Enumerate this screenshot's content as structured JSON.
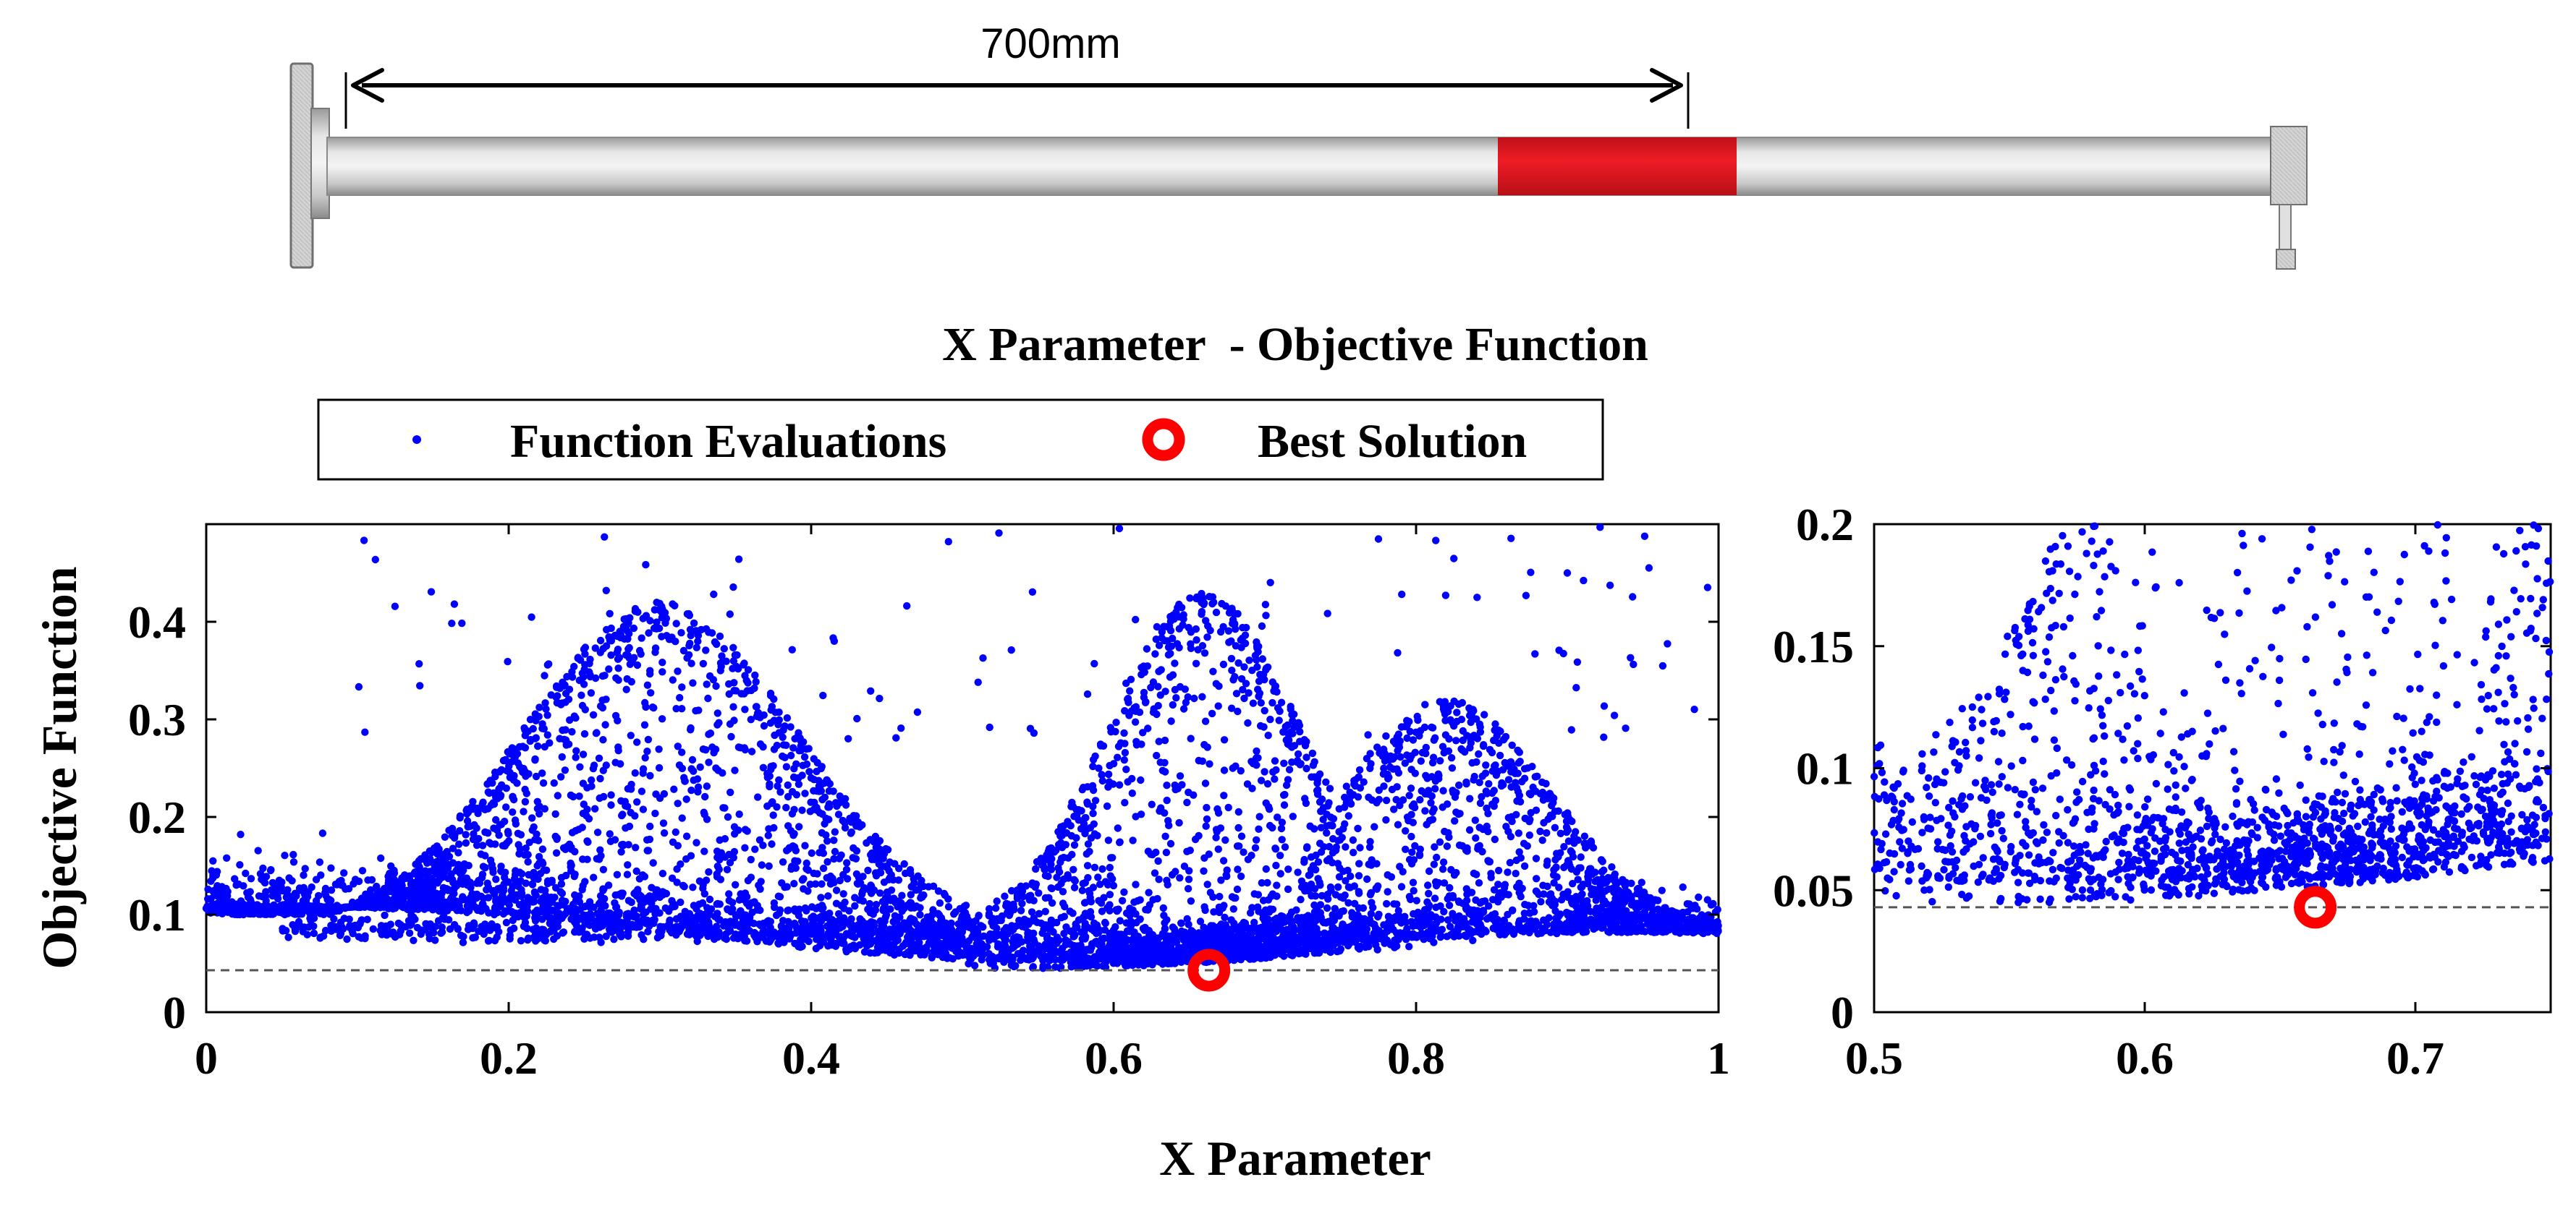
{
  "figure": {
    "dimension_label": "700mm",
    "title": "X Parameter  - Objective Function",
    "xlabel": "X Parameter",
    "ylabel": "Objective Function",
    "legend": {
      "evaluations": "Function Evaluations",
      "best": "Best Solution"
    }
  },
  "colors": {
    "points": "#0000ff",
    "best": "#ff0000",
    "highlight": "#ee1c25",
    "pipe": "#d8d8d8",
    "reference_line": "#555555"
  },
  "chart_data": [
    {
      "type": "scatter",
      "title": "X Parameter  - Objective Function",
      "xlabel": "X Parameter",
      "ylabel": "Objective Function",
      "xlim": [
        0,
        1
      ],
      "ylim": [
        0,
        0.5
      ],
      "xticks": [
        0,
        0.2,
        0.4,
        0.6,
        0.8,
        1
      ],
      "yticks": [
        0,
        0.1,
        0.2,
        0.3,
        0.4
      ],
      "xtick_labels": [
        "0",
        "0.2",
        "0.4",
        "0.6",
        "0.8",
        "1"
      ],
      "ytick_labels": [
        "0",
        "0.1",
        "0.2",
        "0.3",
        "0.4"
      ],
      "series": [
        {
          "name": "Function Evaluations",
          "approx_count": 9000,
          "distribution": "dense band near y=0.05-0.1 across x; upper lobes peaking ~0.44 at x~0.3 and ~0.44 at x~0.65"
        }
      ],
      "best_solution": {
        "x": 0.663,
        "y": 0.043
      },
      "reference_line_y": 0.043
    },
    {
      "type": "scatter",
      "title": "",
      "xlim": [
        0.5,
        0.75
      ],
      "ylim": [
        0,
        0.2
      ],
      "xticks": [
        0.5,
        0.6,
        0.7
      ],
      "yticks": [
        0,
        0.05,
        0.1,
        0.15,
        0.2
      ],
      "xtick_labels": [
        "0.5",
        "0.6",
        "0.7"
      ],
      "ytick_labels": [
        "0",
        "0.05",
        "0.1",
        "0.15",
        "0.2"
      ],
      "series": [
        {
          "name": "Function Evaluations",
          "approx_count": 2400
        }
      ],
      "best_solution": {
        "x": 0.663,
        "y": 0.043
      },
      "reference_line_y": 0.043
    }
  ]
}
